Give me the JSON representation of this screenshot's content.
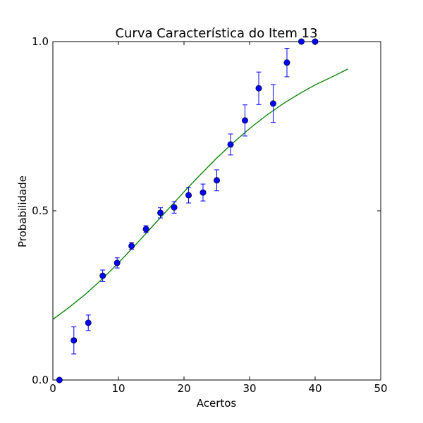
{
  "chart_data": {
    "type": "scatter",
    "title": "Curva Característica do Item 13",
    "xlabel": "Acertos",
    "ylabel": "Probabilidade",
    "xlim": [
      0,
      50
    ],
    "ylim": [
      0.0,
      1.0
    ],
    "x_ticks": [
      0,
      10,
      20,
      30,
      40,
      50
    ],
    "x_tick_labels": [
      "0",
      "10",
      "20",
      "30",
      "40",
      "50"
    ],
    "y_ticks": [
      0.0,
      0.5,
      1.0
    ],
    "y_tick_labels": [
      "0.0",
      "0.5",
      "1.0"
    ],
    "grid": false,
    "series": [
      {
        "kind": "points-with-errorbars",
        "color": "#0000ff",
        "error_color": "#0000ff",
        "x": [
          1.0,
          3.2,
          5.4,
          7.6,
          9.8,
          12.0,
          14.2,
          16.4,
          18.5,
          20.7,
          22.9,
          25.0,
          27.1,
          29.3,
          31.4,
          33.6,
          35.7,
          37.9,
          40.0
        ],
        "y": [
          0.0,
          0.117,
          0.169,
          0.308,
          0.346,
          0.396,
          0.446,
          0.494,
          0.51,
          0.546,
          0.554,
          0.59,
          0.696,
          0.767,
          0.862,
          0.817,
          0.938,
          1.0,
          1.0
        ],
        "err": [
          0.0,
          0.04,
          0.023,
          0.017,
          0.015,
          0.01,
          0.01,
          0.015,
          0.017,
          0.023,
          0.025,
          0.031,
          0.031,
          0.046,
          0.048,
          0.056,
          0.042,
          0.0,
          0.0
        ]
      },
      {
        "kind": "line",
        "color": "#008000",
        "x": [
          0,
          2.5,
          5,
          7.5,
          10,
          12.5,
          15,
          17.5,
          20,
          22.5,
          25,
          27.5,
          30,
          32.5,
          35,
          37.5,
          40,
          42.5,
          45
        ],
        "y": [
          0.179,
          0.215,
          0.254,
          0.298,
          0.346,
          0.397,
          0.45,
          0.503,
          0.556,
          0.607,
          0.656,
          0.701,
          0.743,
          0.781,
          0.815,
          0.845,
          0.872,
          0.895,
          0.919
        ]
      }
    ]
  }
}
